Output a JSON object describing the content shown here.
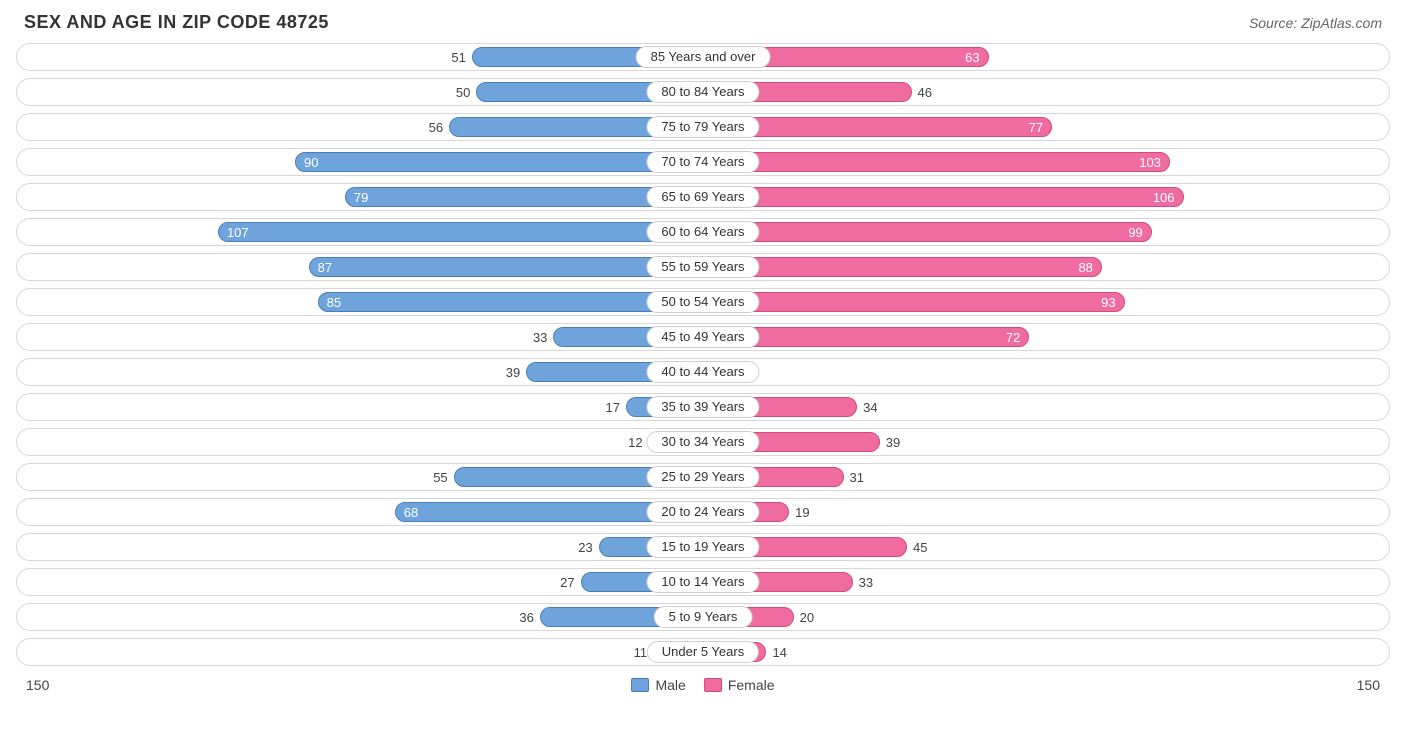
{
  "title": "SEX AND AGE IN ZIP CODE 48725",
  "source": "Source: ZipAtlas.com",
  "chart": {
    "type": "population-pyramid",
    "axis_max": 150,
    "axis_label_left": "150",
    "axis_label_right": "150",
    "value_inside_threshold": 60,
    "colors": {
      "male_fill": "#6ea4db",
      "male_border": "#4a7fb8",
      "female_fill": "#ef6ba0",
      "female_border": "#d14a82",
      "row_border": "#d7d7d7",
      "background": "#ffffff",
      "text_dark": "#444444",
      "text_light": "#ffffff"
    },
    "legend": [
      {
        "label": "Male",
        "fill": "#6ea4db",
        "border": "#4a7fb8"
      },
      {
        "label": "Female",
        "fill": "#ef6ba0",
        "border": "#d14a82"
      }
    ],
    "rows": [
      {
        "label": "85 Years and over",
        "male": 51,
        "female": 63
      },
      {
        "label": "80 to 84 Years",
        "male": 50,
        "female": 46
      },
      {
        "label": "75 to 79 Years",
        "male": 56,
        "female": 77
      },
      {
        "label": "70 to 74 Years",
        "male": 90,
        "female": 103
      },
      {
        "label": "65 to 69 Years",
        "male": 79,
        "female": 106
      },
      {
        "label": "60 to 64 Years",
        "male": 107,
        "female": 99
      },
      {
        "label": "55 to 59 Years",
        "male": 87,
        "female": 88
      },
      {
        "label": "50 to 54 Years",
        "male": 85,
        "female": 93
      },
      {
        "label": "45 to 49 Years",
        "male": 33,
        "female": 72
      },
      {
        "label": "40 to 44 Years",
        "male": 39,
        "female": 2
      },
      {
        "label": "35 to 39 Years",
        "male": 17,
        "female": 34
      },
      {
        "label": "30 to 34 Years",
        "male": 12,
        "female": 39
      },
      {
        "label": "25 to 29 Years",
        "male": 55,
        "female": 31
      },
      {
        "label": "20 to 24 Years",
        "male": 68,
        "female": 19
      },
      {
        "label": "15 to 19 Years",
        "male": 23,
        "female": 45
      },
      {
        "label": "10 to 14 Years",
        "male": 27,
        "female": 33
      },
      {
        "label": "5 to 9 Years",
        "male": 36,
        "female": 20
      },
      {
        "label": "Under 5 Years",
        "male": 11,
        "female": 14
      }
    ]
  }
}
